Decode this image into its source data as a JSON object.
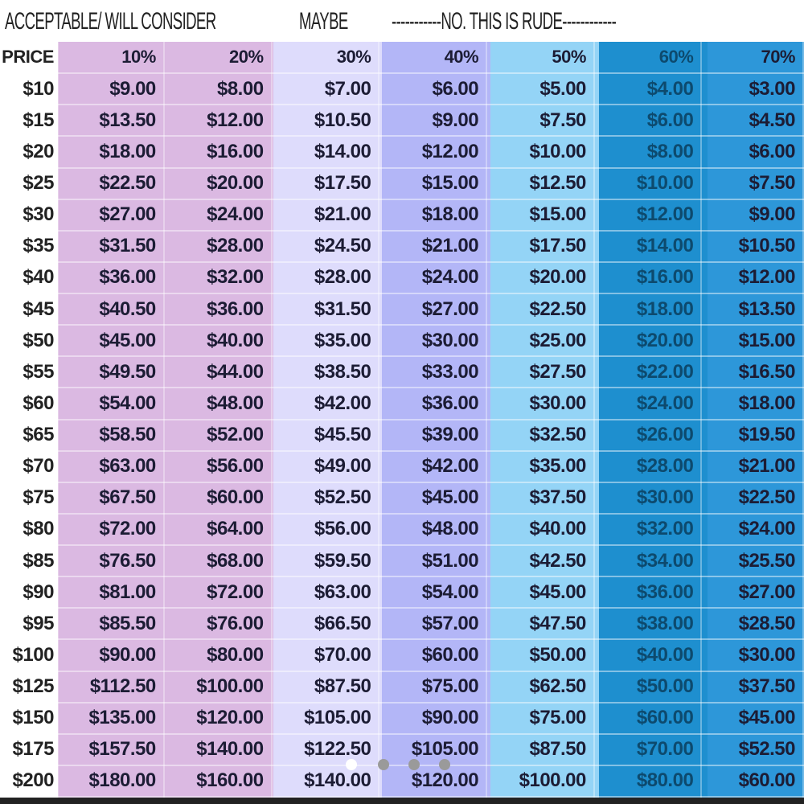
{
  "headings": {
    "acceptable": "ACCEPTABLE/ WILL CONSIDER",
    "maybe": "MAYBE",
    "rude": "-----------NO. THIS IS RUDE------------"
  },
  "colors": {
    "acceptable": "#dbb9e2",
    "maybe": "#dedcfc",
    "col40": "#b3b6f7",
    "col50": "#94d4f6",
    "col60": "#1e8fcf",
    "col70": "#2d97d9"
  },
  "columns": [
    "PRICE",
    "10%",
    "20%",
    "30%",
    "40%",
    "50%",
    "60%",
    "70%"
  ],
  "rows": [
    [
      "$10",
      "$9.00",
      "$8.00",
      "$7.00",
      "$6.00",
      "$5.00",
      "$4.00",
      "$3.00"
    ],
    [
      "$15",
      "$13.50",
      "$12.00",
      "$10.50",
      "$9.00",
      "$7.50",
      "$6.00",
      "$4.50"
    ],
    [
      "$20",
      "$18.00",
      "$16.00",
      "$14.00",
      "$12.00",
      "$10.00",
      "$8.00",
      "$6.00"
    ],
    [
      "$25",
      "$22.50",
      "$20.00",
      "$17.50",
      "$15.00",
      "$12.50",
      "$10.00",
      "$7.50"
    ],
    [
      "$30",
      "$27.00",
      "$24.00",
      "$21.00",
      "$18.00",
      "$15.00",
      "$12.00",
      "$9.00"
    ],
    [
      "$35",
      "$31.50",
      "$28.00",
      "$24.50",
      "$21.00",
      "$17.50",
      "$14.00",
      "$10.50"
    ],
    [
      "$40",
      "$36.00",
      "$32.00",
      "$28.00",
      "$24.00",
      "$20.00",
      "$16.00",
      "$12.00"
    ],
    [
      "$45",
      "$40.50",
      "$36.00",
      "$31.50",
      "$27.00",
      "$22.50",
      "$18.00",
      "$13.50"
    ],
    [
      "$50",
      "$45.00",
      "$40.00",
      "$35.00",
      "$30.00",
      "$25.00",
      "$20.00",
      "$15.00"
    ],
    [
      "$55",
      "$49.50",
      "$44.00",
      "$38.50",
      "$33.00",
      "$27.50",
      "$22.00",
      "$16.50"
    ],
    [
      "$60",
      "$54.00",
      "$48.00",
      "$42.00",
      "$36.00",
      "$30.00",
      "$24.00",
      "$18.00"
    ],
    [
      "$65",
      "$58.50",
      "$52.00",
      "$45.50",
      "$39.00",
      "$32.50",
      "$26.00",
      "$19.50"
    ],
    [
      "$70",
      "$63.00",
      "$56.00",
      "$49.00",
      "$42.00",
      "$35.00",
      "$28.00",
      "$21.00"
    ],
    [
      "$75",
      "$67.50",
      "$60.00",
      "$52.50",
      "$45.00",
      "$37.50",
      "$30.00",
      "$22.50"
    ],
    [
      "$80",
      "$72.00",
      "$64.00",
      "$56.00",
      "$48.00",
      "$40.00",
      "$32.00",
      "$24.00"
    ],
    [
      "$85",
      "$76.50",
      "$68.00",
      "$59.50",
      "$51.00",
      "$42.50",
      "$34.00",
      "$25.50"
    ],
    [
      "$90",
      "$81.00",
      "$72.00",
      "$63.00",
      "$54.00",
      "$45.00",
      "$36.00",
      "$27.00"
    ],
    [
      "$95",
      "$85.50",
      "$76.00",
      "$66.50",
      "$57.00",
      "$47.50",
      "$38.00",
      "$28.50"
    ],
    [
      "$100",
      "$90.00",
      "$80.00",
      "$70.00",
      "$60.00",
      "$50.00",
      "$40.00",
      "$30.00"
    ],
    [
      "$125",
      "$112.50",
      "$100.00",
      "$87.50",
      "$75.00",
      "$62.50",
      "$50.00",
      "$37.50"
    ],
    [
      "$150",
      "$135.00",
      "$120.00",
      "$105.00",
      "$90.00",
      "$75.00",
      "$60.00",
      "$45.00"
    ],
    [
      "$175",
      "$157.50",
      "$140.00",
      "$122.50",
      "$105.00",
      "$87.50",
      "$70.00",
      "$52.50"
    ],
    [
      "$200",
      "$180.00",
      "$160.00",
      "$140.00",
      "$120.00",
      "$100.00",
      "$80.00",
      "$60.00"
    ]
  ],
  "carousel": {
    "pages": 4,
    "active_page": 1
  }
}
